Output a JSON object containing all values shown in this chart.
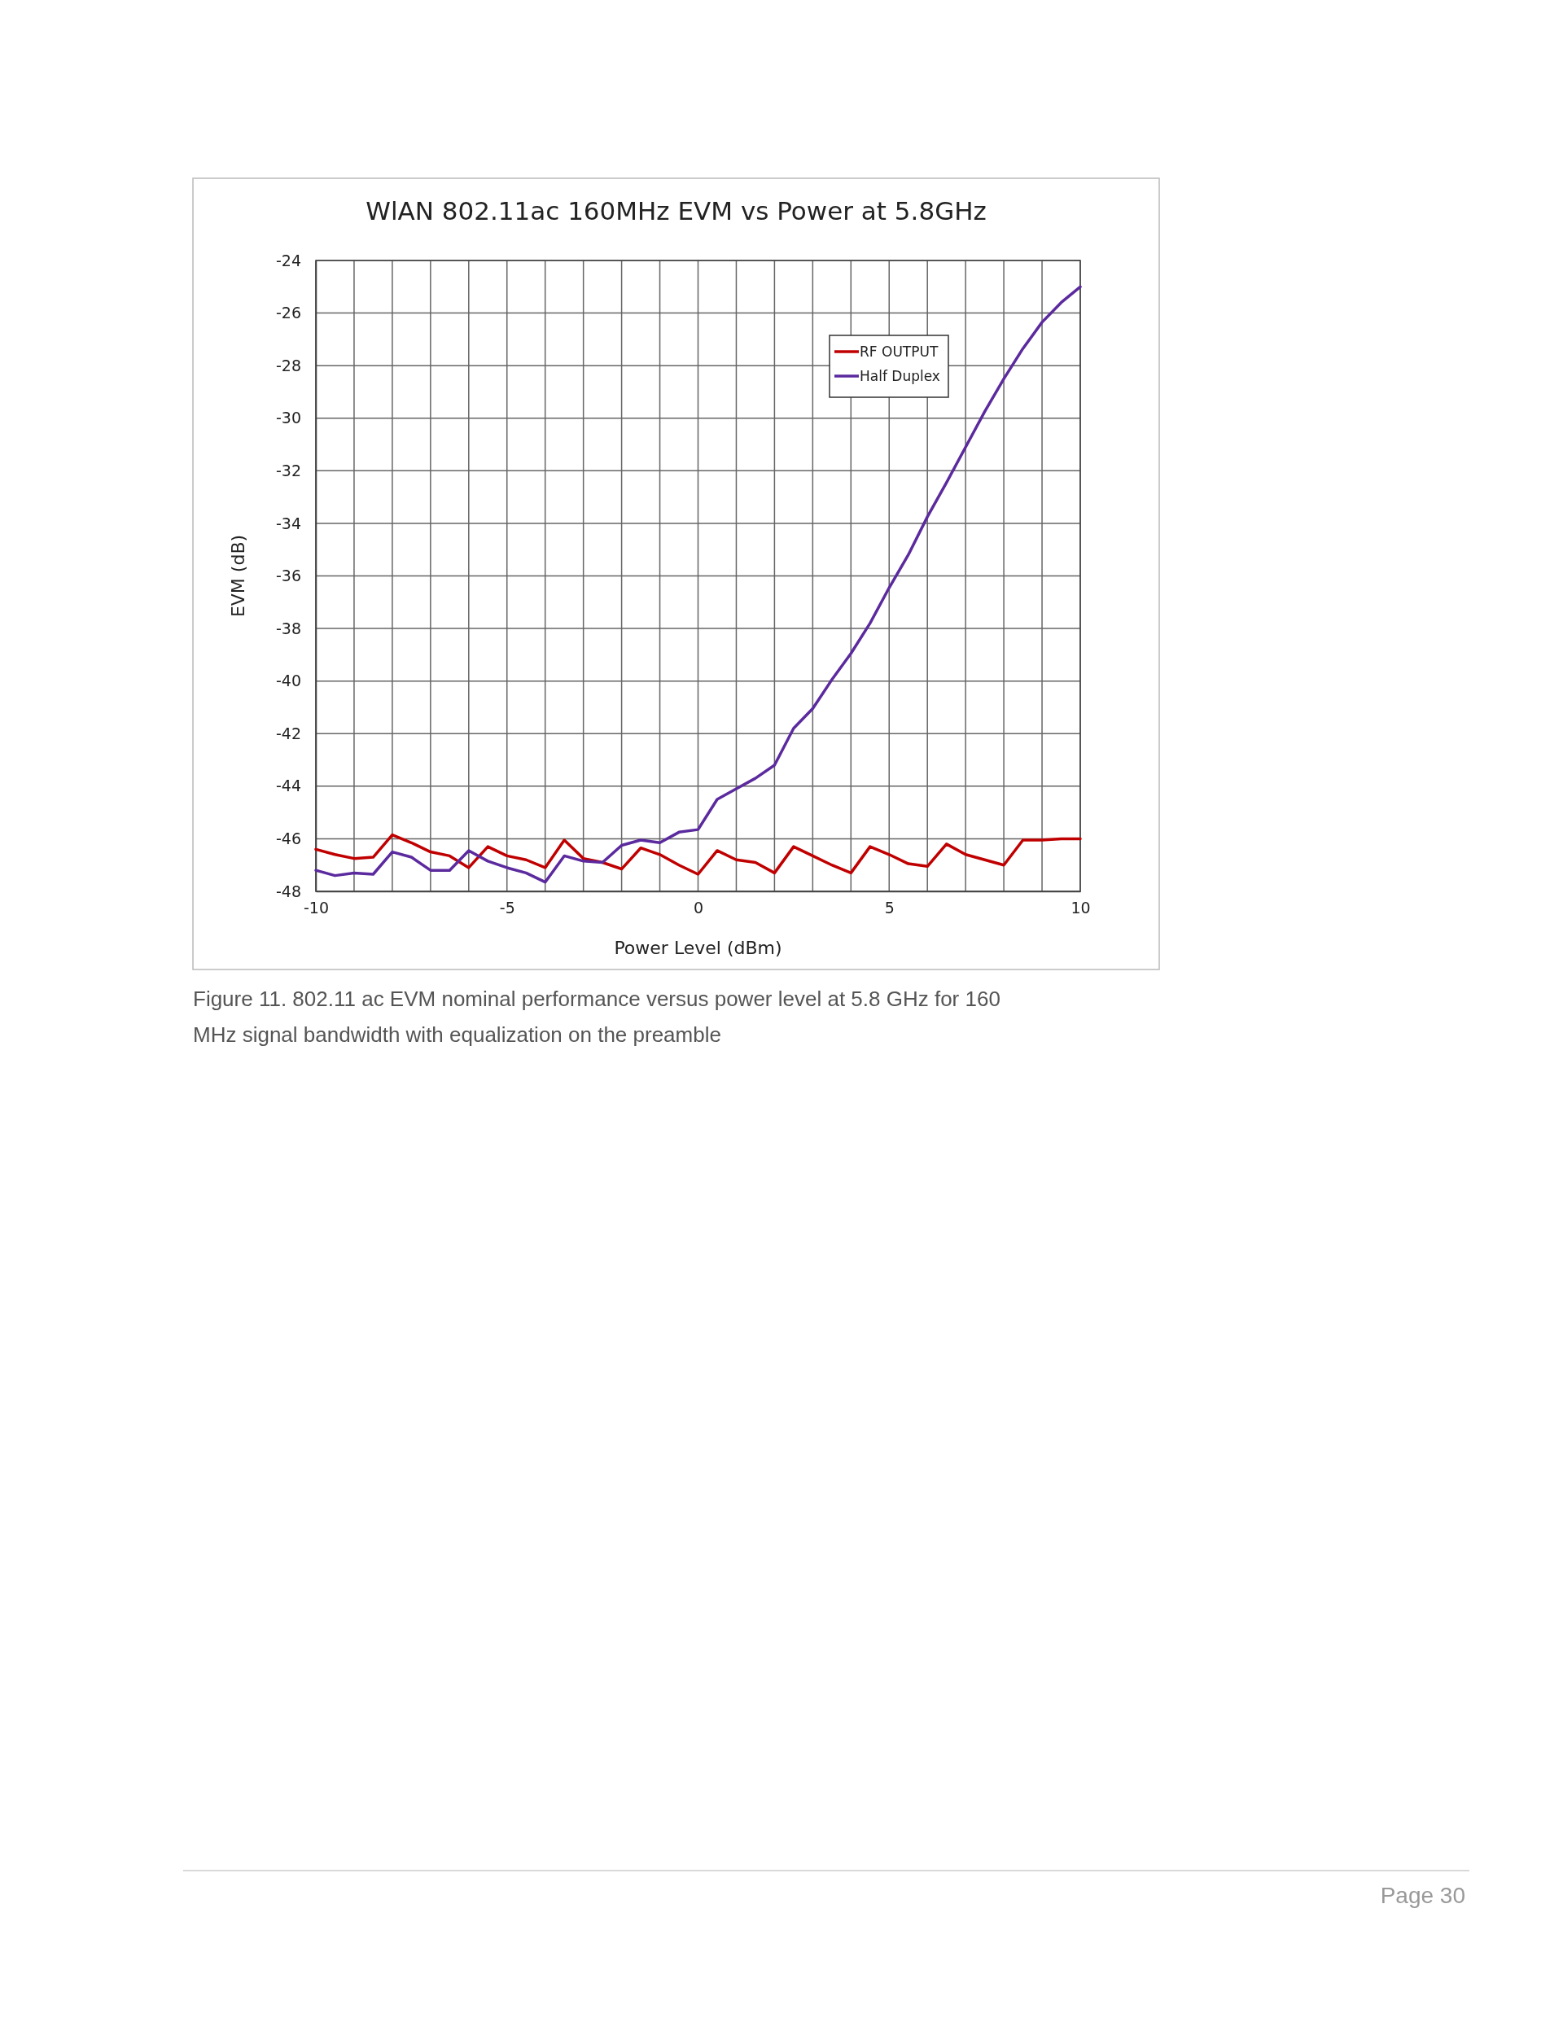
{
  "chart_data": {
    "type": "line",
    "title": "WlAN 802.11ac 160MHz EVM vs Power at 5.8GHz",
    "xlabel": "Power Level (dBm)",
    "ylabel": "EVM (dB)",
    "x": [
      -10,
      -9.5,
      -9,
      -8.5,
      -8,
      -7.5,
      -7,
      -6.5,
      -6,
      -5.5,
      -5,
      -4.5,
      -4,
      -3.5,
      -3,
      -2.5,
      -2,
      -1.5,
      -1,
      -0.5,
      0,
      0.5,
      1,
      1.5,
      2,
      2.5,
      3,
      3.5,
      4,
      4.5,
      5,
      5.5,
      6,
      6.5,
      7,
      7.5,
      8,
      8.5,
      9,
      9.5,
      10
    ],
    "series": [
      {
        "name": "RF OUTPUT",
        "color": "#c00000",
        "values": [
          -46.4,
          -46.6,
          -46.75,
          -46.7,
          -45.85,
          -46.15,
          -46.5,
          -46.65,
          -47.1,
          -46.3,
          -46.65,
          -46.8,
          -47.1,
          -46.05,
          -46.75,
          -46.9,
          -47.15,
          -46.35,
          -46.6,
          -47.0,
          -47.35,
          -46.45,
          -46.8,
          -46.9,
          -47.3,
          -46.3,
          -46.65,
          -47.0,
          -47.3,
          -46.3,
          -46.6,
          -46.95,
          -47.05,
          -46.2,
          -46.6,
          -46.8,
          -47.0,
          -46.05,
          -46.05,
          -46.0,
          -46.0
        ]
      },
      {
        "name": "Half Duplex",
        "color": "#5b2a9e",
        "values": [
          -47.2,
          -47.4,
          -47.3,
          -47.35,
          -46.5,
          -46.7,
          -47.2,
          -47.2,
          -46.45,
          -46.85,
          -47.1,
          -47.3,
          -47.65,
          -46.65,
          -46.85,
          -46.9,
          -46.25,
          -46.05,
          -46.15,
          -45.75,
          -45.65,
          -44.5,
          -44.1,
          -43.7,
          -43.2,
          -41.8,
          -41.05,
          -39.95,
          -38.95,
          -37.8,
          -36.45,
          -35.2,
          -33.75,
          -32.45,
          -31.1,
          -29.75,
          -28.5,
          -27.35,
          -26.35,
          -25.6,
          -25.0
        ]
      }
    ],
    "xlim": [
      -10,
      10
    ],
    "xticks": [
      -10,
      {
        "value": -9,
        "label": null
      },
      {
        "value": -8,
        "label": null
      },
      {
        "value": -7,
        "label": null
      },
      {
        "value": -6,
        "label": null
      },
      -5,
      {
        "value": -4,
        "label": null
      },
      {
        "value": -3,
        "label": null
      },
      {
        "value": -2,
        "label": null
      },
      {
        "value": -1,
        "label": null
      },
      0,
      {
        "value": 1,
        "label": null
      },
      {
        "value": 2,
        "label": null
      },
      {
        "value": 3,
        "label": null
      },
      {
        "value": 4,
        "label": null
      },
      5,
      {
        "value": 6,
        "label": null
      },
      {
        "value": 7,
        "label": null
      },
      {
        "value": 8,
        "label": null
      },
      {
        "value": 9,
        "label": null
      },
      10
    ],
    "ylim": [
      -48,
      -24
    ],
    "yticks": [
      -48,
      -46,
      -44,
      -42,
      -40,
      -38,
      -36,
      -34,
      -32,
      -30,
      -28,
      -26,
      -24
    ],
    "grid": true,
    "legend": "top right",
    "line_style": "solid",
    "marker": "none",
    "annotations": [
      "Figure 11. 802.11 ac EVM nominal performance versus power level at 5.8 GHz for 160 MHz signal bandwidth with equalization on the preamble",
      "Page 30"
    ]
  }
}
